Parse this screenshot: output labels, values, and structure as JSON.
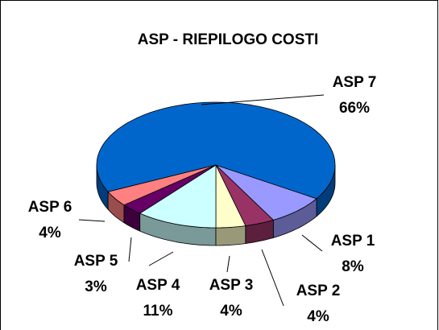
{
  "chart_data": {
    "type": "pie",
    "title": "ASP - RIEPILOGO COSTI",
    "categories": [
      "ASP 1",
      "ASP 2",
      "ASP 3",
      "ASP 4",
      "ASP 5",
      "ASP 6",
      "ASP 7"
    ],
    "values": [
      8,
      4,
      4,
      11,
      3,
      4,
      66
    ],
    "value_labels": [
      "8%",
      "4%",
      "4%",
      "11%",
      "3%",
      "4%",
      "66%"
    ],
    "colors": [
      "#9999ff",
      "#993366",
      "#ffffcc",
      "#ccffff",
      "#660066",
      "#ff8080",
      "#0066cc"
    ]
  }
}
